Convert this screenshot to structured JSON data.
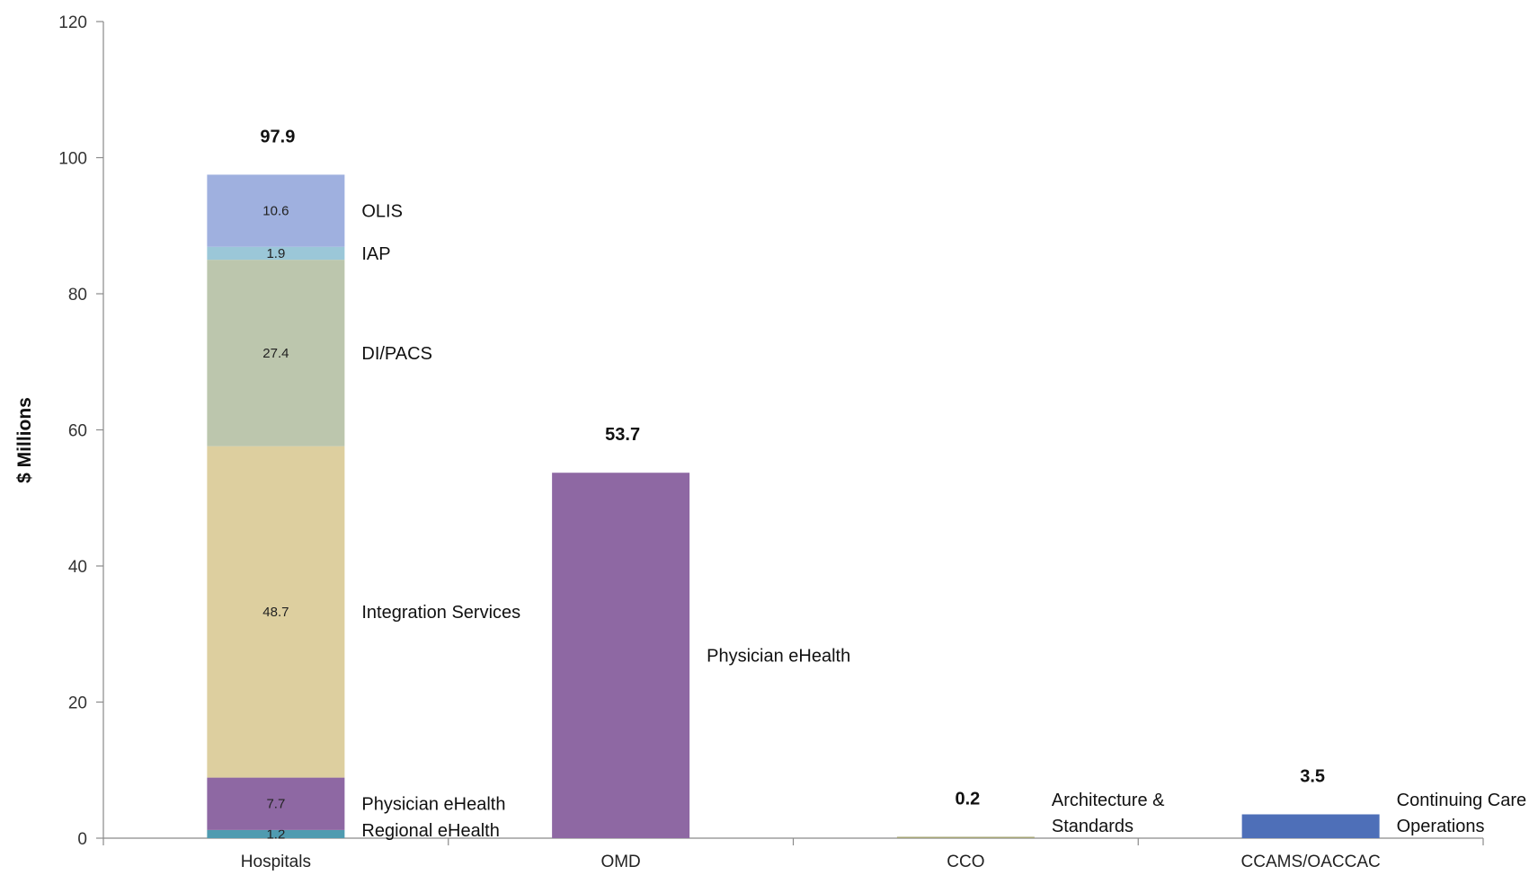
{
  "chart_data": {
    "type": "bar",
    "stacked": true,
    "ylabel": "$ Millions",
    "xlabel": "",
    "ylim": [
      0,
      120
    ],
    "yticks": [
      "0",
      "20",
      "40",
      "60",
      "80",
      "100",
      "120"
    ],
    "grid": false,
    "categories": [
      "Hospitals",
      "OMD",
      "CCO",
      "CCAMS/OACCAC"
    ],
    "bars": [
      {
        "category": "Hospitals",
        "total_label": "97.9",
        "segments": [
          {
            "name": "Regional eHealth",
            "value": 1.2,
            "label": "1.2",
            "color": "#4f9bb0"
          },
          {
            "name": "Physician eHealth",
            "value": 7.7,
            "label": "7.7",
            "color": "#8e68a3"
          },
          {
            "name": "Integration Services",
            "value": 48.7,
            "label": "48.7",
            "color": "#ddcf9f"
          },
          {
            "name": "DI/PACS",
            "value": 27.4,
            "label": "27.4",
            "color": "#bcc6ad"
          },
          {
            "name": "IAP",
            "value": 1.9,
            "label": "1.9",
            "color": "#9bc7d8"
          },
          {
            "name": "OLIS",
            "value": 10.6,
            "label": "10.6",
            "color": "#9fb0df"
          }
        ]
      },
      {
        "category": "OMD",
        "total_label": "53.7",
        "segments": [
          {
            "name": "Physician eHealth",
            "value": 53.7,
            "label": "",
            "color": "#8e68a3"
          }
        ]
      },
      {
        "category": "CCO",
        "total_label": "0.2",
        "segments": [
          {
            "name": "Architecture & Standards",
            "lines": [
              "Architecture &",
              "Standards"
            ],
            "value": 0.2,
            "label": "",
            "color": "#a3a375"
          }
        ]
      },
      {
        "category": "CCAMS/OACCAC",
        "total_label": "3.5",
        "segments": [
          {
            "name": "Continuing Care Operations",
            "lines": [
              "Continuing Care",
              "Operations"
            ],
            "value": 3.5,
            "label": "",
            "color": "#4e6fb8"
          }
        ]
      }
    ]
  }
}
